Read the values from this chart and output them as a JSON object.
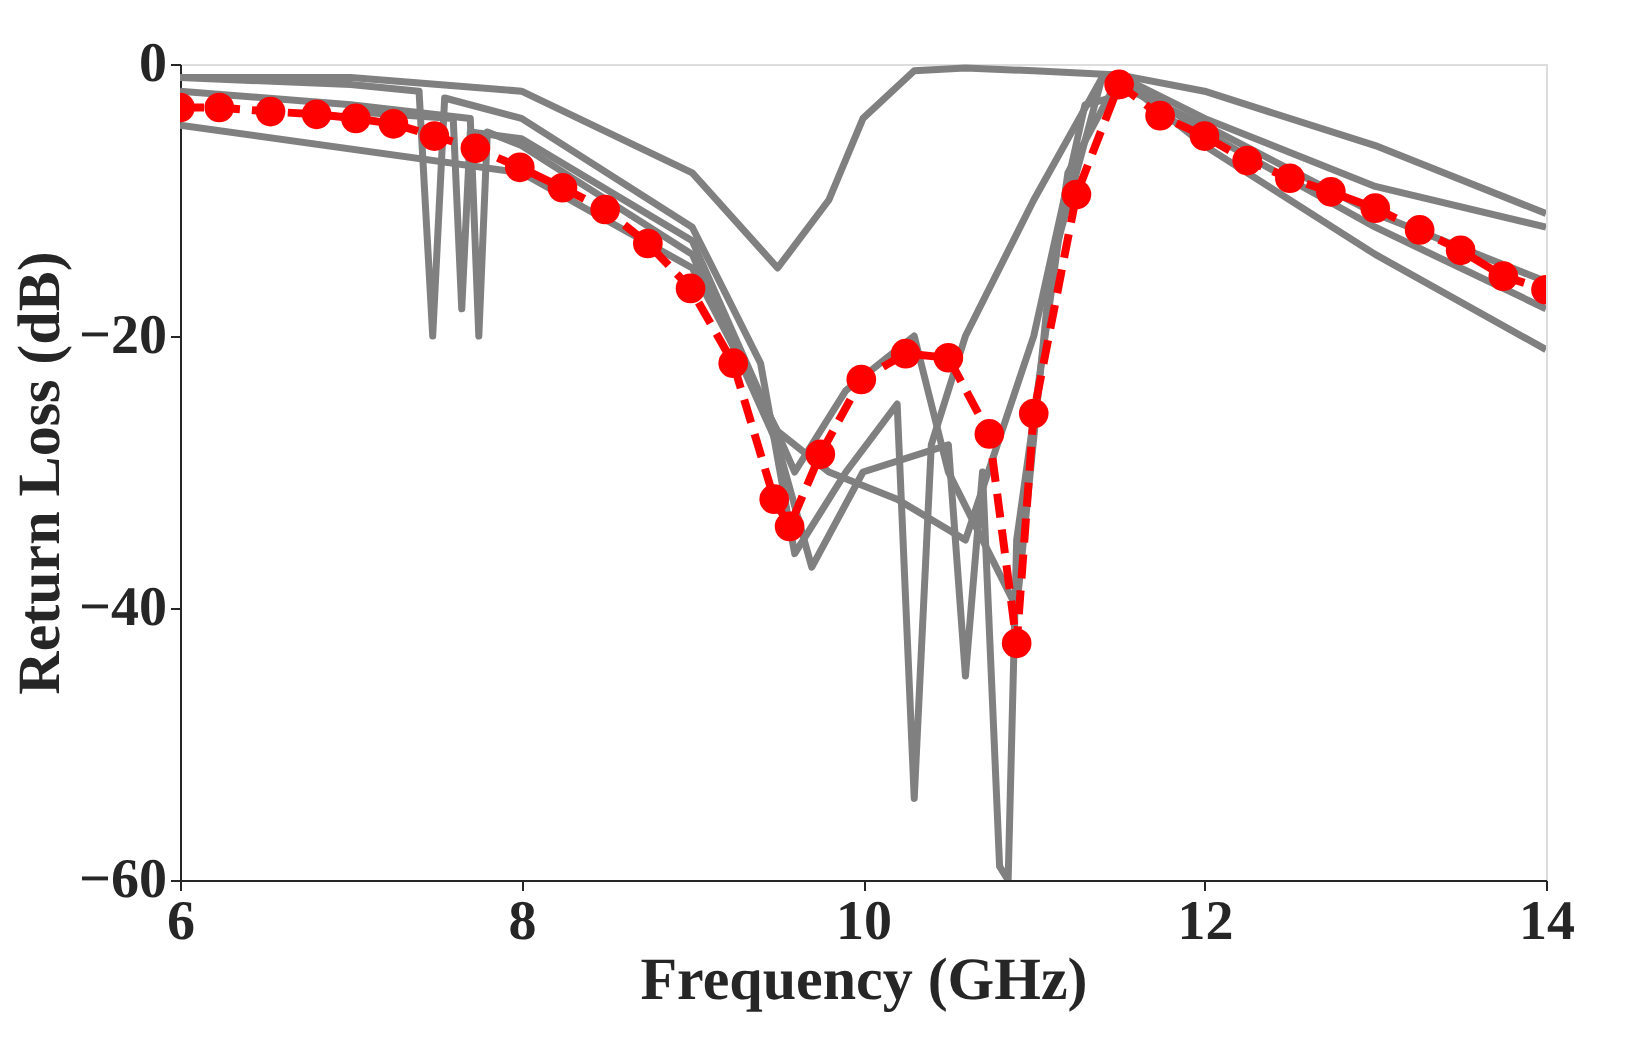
{
  "chart_data": {
    "type": "line",
    "xlabel": "Frequency (GHz)",
    "ylabel": "Return Loss (dB)",
    "xlim": [
      6,
      14
    ],
    "ylim": [
      -60,
      0
    ],
    "xticks": [
      6,
      8,
      10,
      12,
      14
    ],
    "yticks": [
      -60,
      -40,
      -20,
      0
    ],
    "grid": false,
    "legend": false,
    "series": [
      {
        "color": "#808080",
        "marker": "none",
        "line_style": "solid",
        "x": [
          6,
          7,
          7.4,
          7.48,
          7.55,
          8,
          9,
          9.4,
          9.6,
          9.9,
          10.2,
          10.3,
          10.4,
          10.6,
          11,
          11.4,
          11.6,
          12,
          13,
          14
        ],
        "values": [
          -1,
          -1.5,
          -2,
          -20,
          -2.5,
          -4,
          -12,
          -22,
          -36,
          -30,
          -25,
          -54,
          -28,
          -20,
          -10,
          -1,
          -1.5,
          -4,
          -9,
          -12
        ]
      },
      {
        "color": "#808080",
        "marker": "none",
        "line_style": "solid",
        "x": [
          6,
          7,
          7.7,
          7.75,
          7.8,
          8,
          9,
          9.5,
          9.7,
          10,
          10.5,
          10.6,
          10.7,
          10.8,
          10.85,
          10.9,
          11.2,
          11.5,
          12,
          13,
          14
        ],
        "values": [
          -2,
          -3,
          -4,
          -20,
          -5,
          -6,
          -14,
          -28,
          -37,
          -30,
          -28,
          -45,
          -30,
          -59,
          -60,
          -35,
          -8,
          -1,
          -5,
          -12,
          -18
        ]
      },
      {
        "color": "#808080",
        "marker": "none",
        "line_style": "solid",
        "x": [
          6,
          8,
          9,
          9.5,
          9.8,
          10.2,
          10.6,
          11,
          11.3,
          11.6,
          12,
          13,
          14
        ],
        "values": [
          -4.5,
          -8,
          -15,
          -27,
          -30,
          -32,
          -35,
          -20,
          -3,
          -2,
          -6,
          -14,
          -21
        ]
      },
      {
        "color": "#808080",
        "marker": "none",
        "line_style": "solid",
        "x": [
          6,
          7,
          8,
          9,
          9.5,
          9.8,
          10,
          10.3,
          10.6,
          11,
          11.5,
          12,
          13,
          14
        ],
        "values": [
          -1,
          -1,
          -2,
          -8,
          -15,
          -10,
          -4,
          -0.5,
          -0.3,
          -0.5,
          -0.8,
          -2,
          -6,
          -11
        ]
      },
      {
        "color": "#808080",
        "marker": "none",
        "line_style": "solid",
        "x": [
          7,
          7.6,
          7.65,
          7.7,
          8,
          9,
          9.6,
          9.9,
          10.3,
          10.5,
          10.9,
          11.1,
          11.4,
          12,
          13,
          14
        ],
        "values": [
          -3.5,
          -4,
          -18,
          -5,
          -5.5,
          -13,
          -30,
          -24,
          -20,
          -30,
          -40,
          -15,
          -1,
          -4.5,
          -11,
          -16
        ]
      },
      {
        "color": "#ff0000",
        "marker": "circle",
        "line_style": "dashed",
        "x": [
          6.0,
          6.23,
          6.53,
          6.8,
          7.03,
          7.25,
          7.49,
          7.73,
          7.99,
          8.24,
          8.49,
          8.74,
          8.99,
          9.24,
          9.48,
          9.57,
          9.75,
          9.99,
          10.25,
          10.5,
          10.74,
          10.9,
          11.0,
          11.25,
          11.5,
          11.74,
          12.0,
          12.25,
          12.5,
          12.74,
          13.0,
          13.26,
          13.5,
          13.75,
          14.0
        ],
        "values": [
          -3.2,
          -3.2,
          -3.5,
          -3.7,
          -4,
          -4.4,
          -5.3,
          -6.2,
          -7.6,
          -9.1,
          -10.7,
          -13.2,
          -16.5,
          -22,
          -32,
          -34,
          -28.7,
          -23.2,
          -21.3,
          -21.6,
          -27.2,
          -42.6,
          -25.7,
          -9.6,
          -1.5,
          -3.8,
          -5.3,
          -7.1,
          -8.4,
          -9.4,
          -10.6,
          -12.2,
          -13.7,
          -15.6,
          -16.6
        ]
      }
    ]
  }
}
